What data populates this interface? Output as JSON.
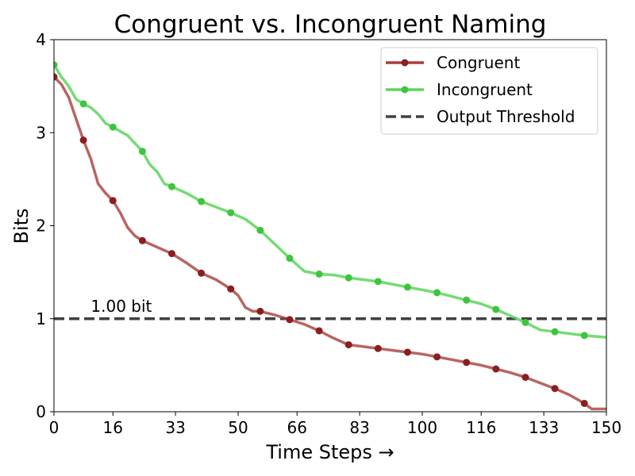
{
  "chart_data": {
    "type": "line",
    "title": "Congruent vs. Incongruent Naming",
    "xlabel": "Time Steps →",
    "ylabel": "Bits",
    "xlim": [
      0,
      150
    ],
    "ylim": [
      0,
      4
    ],
    "xticks": [
      0,
      16,
      33,
      50,
      66,
      83,
      100,
      116,
      133,
      150
    ],
    "yticks": [
      0,
      1,
      2,
      3,
      4
    ],
    "grid": false,
    "legend_position": "top-right",
    "colors": {
      "congruent": "#a83f3a",
      "congruent_marker": "#8b1e1e",
      "incongruent": "#5cd65c",
      "incongruent_marker": "#3fc43f",
      "threshold": "#404040"
    },
    "threshold": {
      "name": "Output Threshold",
      "value": 1.0,
      "label": "1.00 bit"
    },
    "series": [
      {
        "name": "Congruent",
        "x": [
          0,
          2,
          4,
          6,
          8,
          10,
          12,
          14,
          16,
          18,
          20,
          22,
          24,
          28,
          32,
          36,
          40,
          44,
          48,
          50,
          52,
          54,
          56,
          60,
          64,
          68,
          72,
          76,
          80,
          84,
          88,
          92,
          96,
          100,
          104,
          108,
          112,
          116,
          120,
          124,
          128,
          132,
          136,
          140,
          144,
          146,
          150
        ],
        "y": [
          3.6,
          3.52,
          3.38,
          3.15,
          2.92,
          2.72,
          2.45,
          2.35,
          2.27,
          2.14,
          1.98,
          1.89,
          1.84,
          1.77,
          1.7,
          1.6,
          1.49,
          1.42,
          1.32,
          1.25,
          1.12,
          1.08,
          1.08,
          1.04,
          0.99,
          0.94,
          0.87,
          0.79,
          0.72,
          0.7,
          0.68,
          0.66,
          0.64,
          0.62,
          0.59,
          0.56,
          0.53,
          0.5,
          0.46,
          0.42,
          0.37,
          0.31,
          0.25,
          0.18,
          0.09,
          0.03,
          0.03
        ],
        "markers_x": [
          0,
          8,
          16,
          24,
          32,
          40,
          48,
          56,
          64,
          72,
          80,
          88,
          96,
          104,
          112,
          120,
          128,
          136,
          144
        ],
        "markers_y": [
          3.6,
          2.92,
          2.27,
          1.84,
          1.7,
          1.49,
          1.32,
          1.08,
          0.99,
          0.87,
          0.72,
          0.68,
          0.64,
          0.59,
          0.53,
          0.46,
          0.37,
          0.25,
          0.09
        ]
      },
      {
        "name": "Incongruent",
        "x": [
          0,
          2,
          4,
          6,
          8,
          10,
          12,
          14,
          16,
          20,
          24,
          26,
          28,
          30,
          32,
          36,
          40,
          44,
          48,
          52,
          56,
          60,
          64,
          68,
          72,
          76,
          80,
          84,
          88,
          92,
          96,
          100,
          104,
          108,
          112,
          116,
          120,
          124,
          128,
          132,
          136,
          140,
          144,
          150
        ],
        "y": [
          3.73,
          3.6,
          3.5,
          3.36,
          3.31,
          3.27,
          3.2,
          3.1,
          3.06,
          2.97,
          2.8,
          2.66,
          2.58,
          2.45,
          2.42,
          2.35,
          2.26,
          2.2,
          2.14,
          2.07,
          1.95,
          1.8,
          1.65,
          1.51,
          1.48,
          1.47,
          1.44,
          1.42,
          1.4,
          1.37,
          1.34,
          1.31,
          1.28,
          1.24,
          1.2,
          1.16,
          1.1,
          1.03,
          0.96,
          0.88,
          0.86,
          0.84,
          0.82,
          0.8
        ],
        "markers_x": [
          0,
          8,
          16,
          24,
          32,
          40,
          48,
          56,
          64,
          72,
          80,
          88,
          96,
          104,
          112,
          120,
          128,
          136,
          144
        ],
        "markers_y": [
          3.73,
          3.31,
          3.06,
          2.8,
          2.42,
          2.26,
          2.14,
          1.95,
          1.65,
          1.48,
          1.44,
          1.4,
          1.34,
          1.28,
          1.2,
          1.1,
          0.96,
          0.86,
          0.82
        ]
      }
    ]
  }
}
